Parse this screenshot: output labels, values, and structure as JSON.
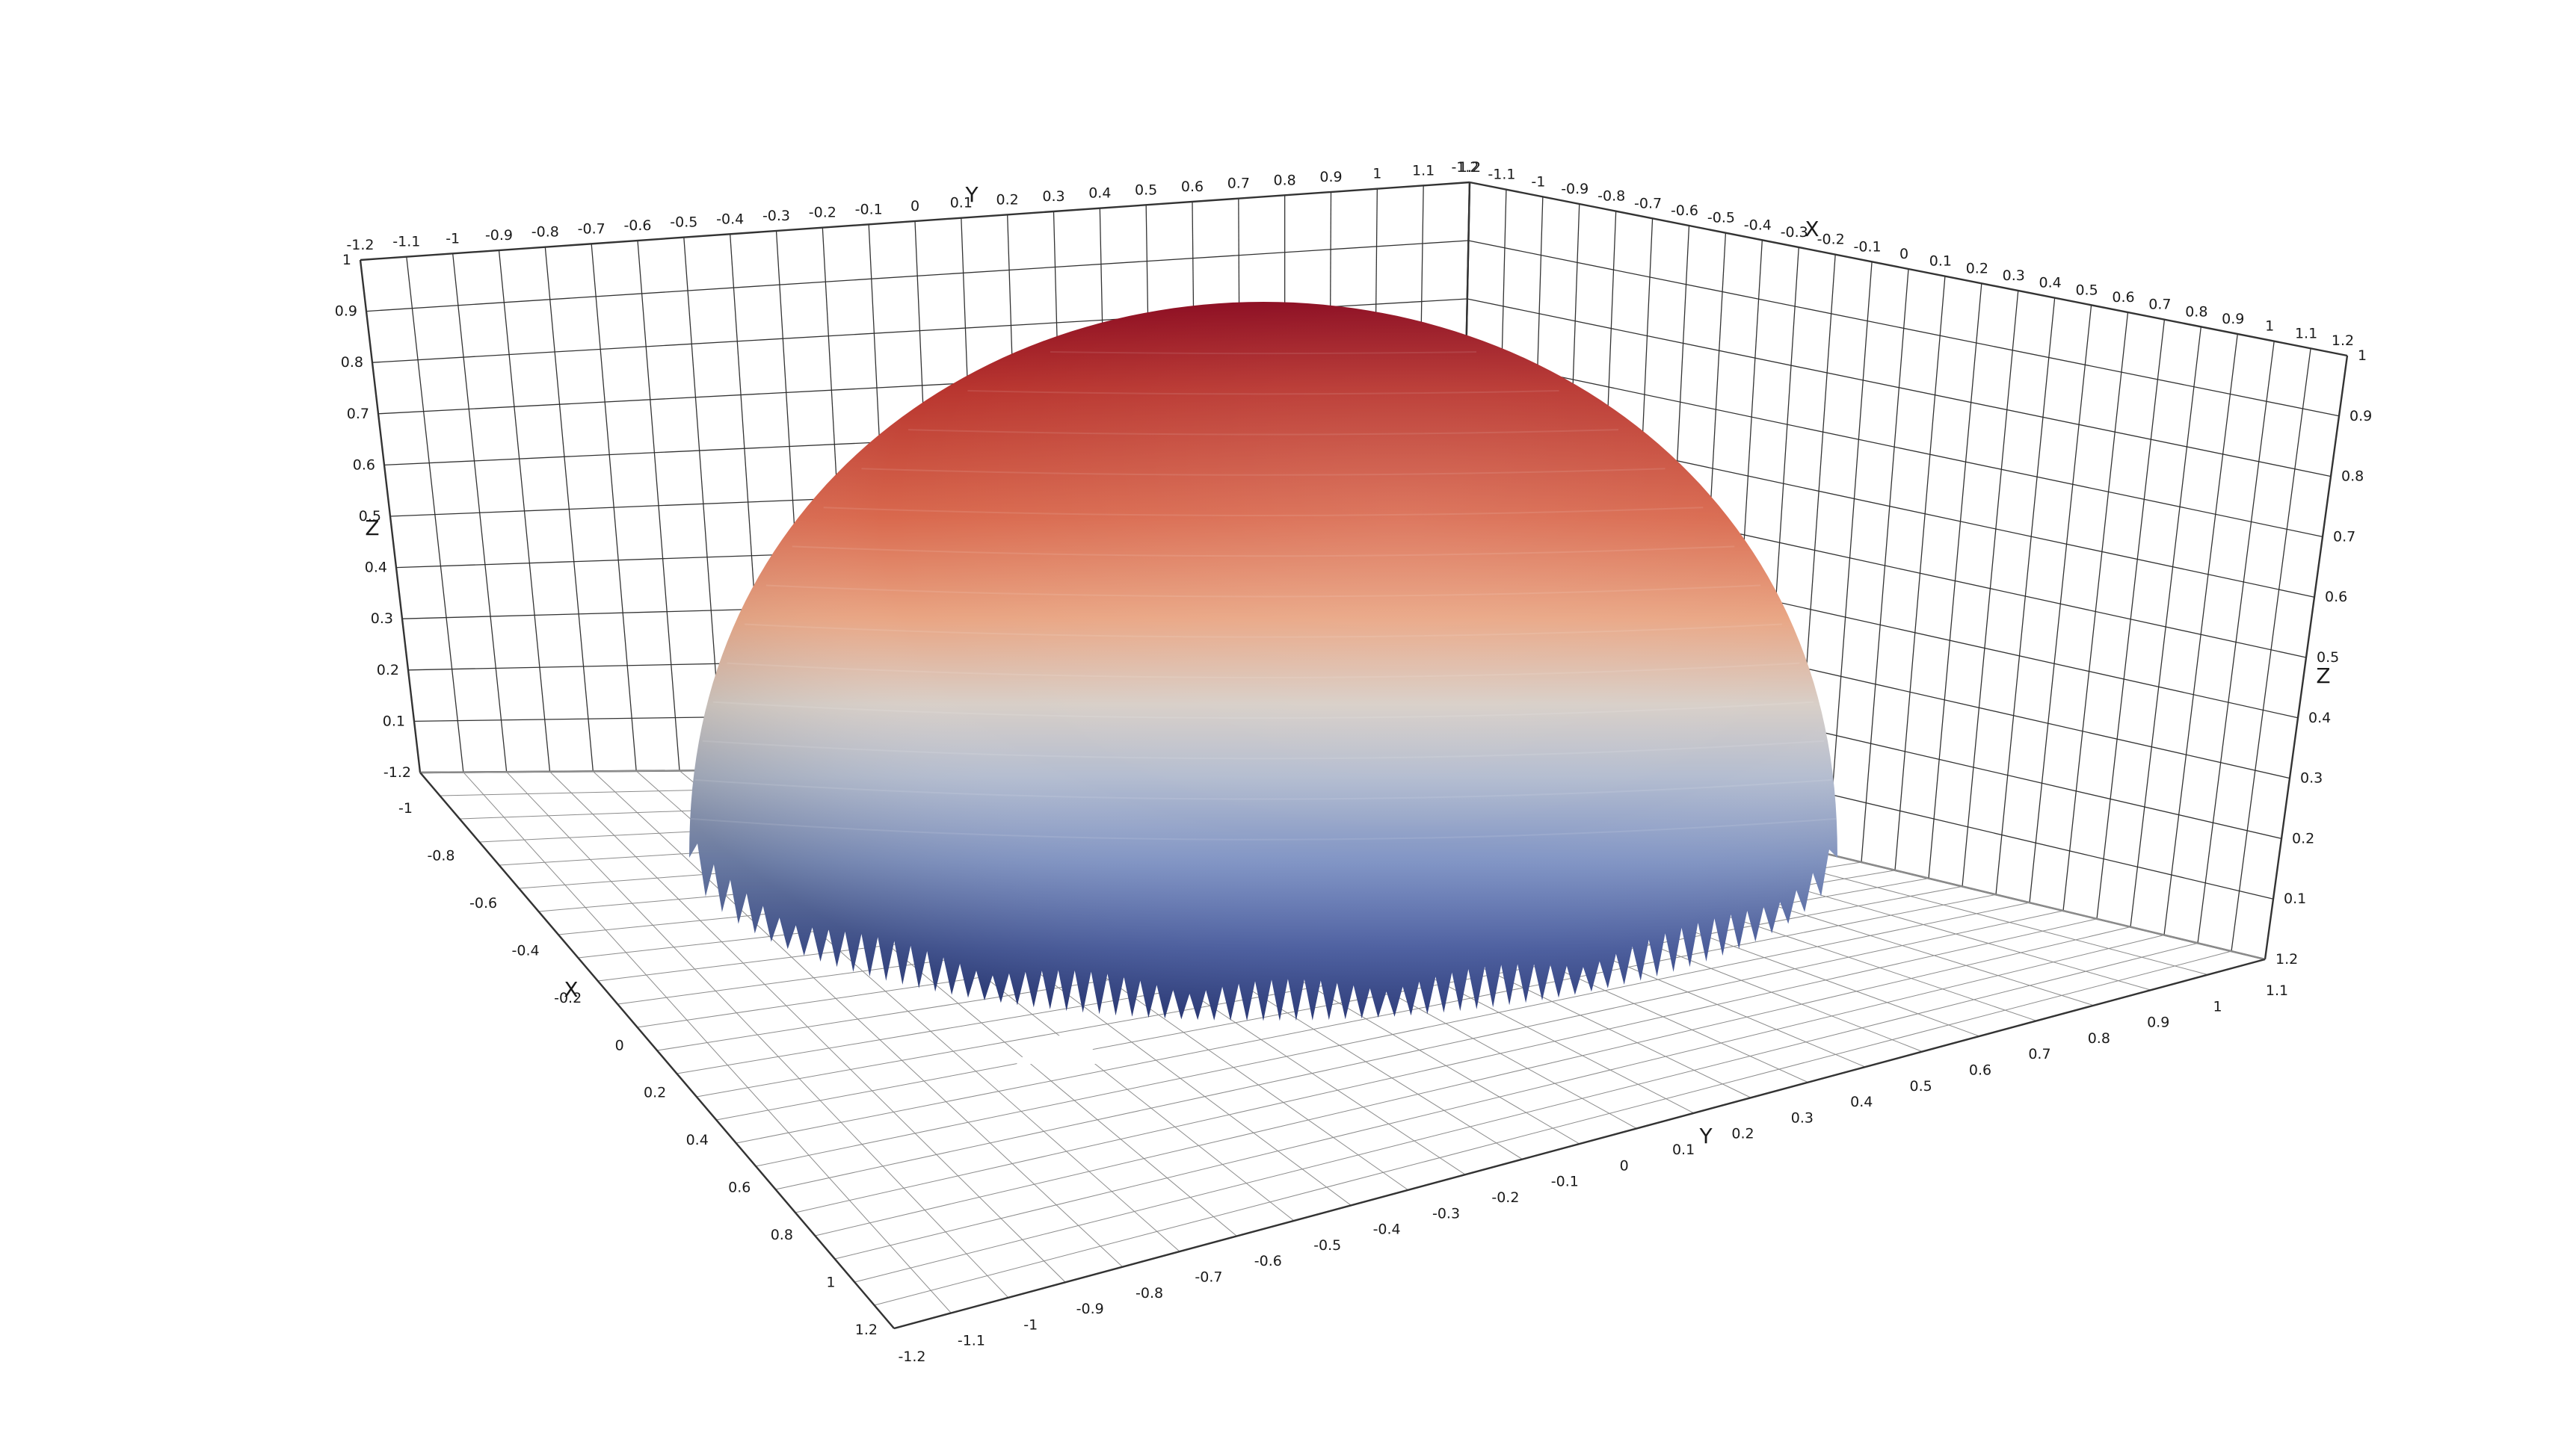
{
  "scene": {
    "description_free": true,
    "colors": {
      "background": "#ffffff",
      "gridline": "#333333",
      "gridline_light": "#8c8c8c",
      "dome_top": "#8b0a1f",
      "dome_upper": "#d9694e",
      "dome_mid": "#e6d3c6",
      "dome_lower": "#9fb2d6",
      "dome_base": "#2e3f86"
    }
  },
  "axes": {
    "back_left_wall": {
      "title_top": "Y",
      "title_side": "Z",
      "top_ticks": [
        "-1.2",
        "-1.1",
        "-1",
        "-0.9",
        "-0.8",
        "-0.7",
        "-0.6",
        "-0.5",
        "-0.4",
        "-0.3",
        "-0.2",
        "-0.1",
        "0",
        "0.1",
        "0.2",
        "0.3",
        "0.4",
        "0.5",
        "0.6",
        "0.7",
        "0.8",
        "0.9",
        "1",
        "1.1",
        "1.2"
      ],
      "z_ticks": [
        "1",
        "0.9",
        "0.8",
        "0.7",
        "0.6",
        "0.5",
        "0.4",
        "0.3",
        "0.2",
        "0.1",
        "-1.2"
      ]
    },
    "back_right_wall": {
      "title_top": "X",
      "title_side": "Z",
      "top_ticks": [
        "-1.2",
        "-1.1",
        "-1",
        "-0.9",
        "-0.8",
        "-0.7",
        "-0.6",
        "-0.5",
        "-0.4",
        "-0.3",
        "-0.2",
        "-0.1",
        "0",
        "0.1",
        "0.2",
        "0.3",
        "0.4",
        "0.5",
        "0.6",
        "0.7",
        "0.8",
        "0.9",
        "1",
        "1.1",
        "1.2"
      ],
      "z_ticks": [
        "1",
        "0.9",
        "0.8",
        "0.7",
        "0.6",
        "0.5",
        "0.4",
        "0.3",
        "0.2",
        "0.1",
        "1.2"
      ]
    },
    "floor_left": {
      "title": "X",
      "ticks": [
        "-1",
        "-0.8",
        "-0.6",
        "-0.4",
        "-0.2",
        "0",
        "0.2",
        "0.4",
        "0.6",
        "0.8",
        "1",
        "1.2"
      ]
    },
    "floor_front": {
      "title": "Y",
      "ticks": [
        "-1.2",
        "-1.1",
        "-1",
        "-0.9",
        "-0.8",
        "-0.7",
        "-0.6",
        "-0.5",
        "-0.4",
        "-0.3",
        "-0.2",
        "-0.1",
        "0",
        "0.1",
        "0.2",
        "0.3",
        "0.4",
        "0.5",
        "0.6",
        "0.7",
        "0.8",
        "0.9",
        "1",
        "1.1"
      ]
    }
  }
}
